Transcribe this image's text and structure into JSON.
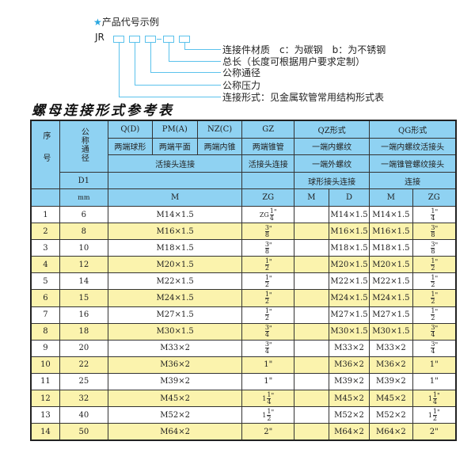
{
  "legend": {
    "title": "产品代号示例",
    "code_prefix": "JR",
    "labels": [
      "连接件材质　c：为碳钢　b：为不锈钢",
      "总长（长度可根据用户要求定制）",
      "公称通径",
      "公称压力",
      "连接形式：见金属软管常用结构形式表"
    ]
  },
  "table_title": "螺母连接形式参考表",
  "accent_colors": {
    "header": "#8fd2f2",
    "alt_row": "#fbf3ad",
    "legend_line": "#5bc2ec"
  },
  "header": {
    "seq": "序号",
    "dn": "公称通径",
    "qd": "Q(D)",
    "pm": "PM(A)",
    "nz": "NZ(C)",
    "gz": "GZ",
    "qz": "QZ形式",
    "qg": "QG形式",
    "qd_desc": "两端球形",
    "pm_desc": "两端平面",
    "nz_desc": "两端内锥",
    "gz_desc": "两端锥管",
    "qz_desc": "一端内螺纹",
    "qg_desc": "一端内螺纹活接头",
    "union_conn": "活接头连接",
    "gz_conn": "活接头连接",
    "qz_conn": "一端外螺纹",
    "qg_conn": "一端锥管螺纹接头",
    "d1": "D1",
    "qz_conn2": "球形接头连接",
    "qg_conn2": "连接",
    "mm": "mm",
    "m": "M",
    "zg": "ZG",
    "qz_m": "M",
    "qz_d": "D",
    "qg_m": "M",
    "qg_zg": "ZG"
  },
  "rows": [
    {
      "seq": "1",
      "dn": "6",
      "m": "M14×1.5",
      "zg": {
        "pre": "ZG",
        "num": "1",
        "den": "4",
        "suf": "\""
      },
      "qz_m": "",
      "qz_d": "M14×1.5",
      "qg_m": "M14×1.5",
      "qg_zg": {
        "pre": "",
        "num": "1",
        "den": "4",
        "suf": "\""
      }
    },
    {
      "seq": "2",
      "dn": "8",
      "m": "M16×1.5",
      "zg": {
        "pre": "",
        "num": "3",
        "den": "8",
        "suf": "\""
      },
      "qz_m": "",
      "qz_d": "M16×1.5",
      "qg_m": "M16×1.5",
      "qg_zg": {
        "pre": "",
        "num": "3",
        "den": "8",
        "suf": "\""
      }
    },
    {
      "seq": "3",
      "dn": "10",
      "m": "M18×1.5",
      "zg": {
        "pre": "",
        "num": "3",
        "den": "8",
        "suf": "\""
      },
      "qz_m": "",
      "qz_d": "M18×1.5",
      "qg_m": "M18×1.5",
      "qg_zg": {
        "pre": "",
        "num": "3",
        "den": "8",
        "suf": "\""
      }
    },
    {
      "seq": "4",
      "dn": "12",
      "m": "M20×1.5",
      "zg": {
        "pre": "",
        "num": "1",
        "den": "2",
        "suf": "\""
      },
      "qz_m": "",
      "qz_d": "M20×1.5",
      "qg_m": "M20×1.5",
      "qg_zg": {
        "pre": "",
        "num": "1",
        "den": "2",
        "suf": "\""
      }
    },
    {
      "seq": "5",
      "dn": "14",
      "m": "M22×1.5",
      "zg": {
        "pre": "",
        "num": "1",
        "den": "2",
        "suf": "\""
      },
      "qz_m": "",
      "qz_d": "M22×1.5",
      "qg_m": "M22×1.5",
      "qg_zg": {
        "pre": "",
        "num": "1",
        "den": "2",
        "suf": "\""
      }
    },
    {
      "seq": "6",
      "dn": "15",
      "m": "M24×1.5",
      "zg": {
        "pre": "",
        "num": "1",
        "den": "2",
        "suf": "\""
      },
      "qz_m": "",
      "qz_d": "M24×1.5",
      "qg_m": "M24×1.5",
      "qg_zg": {
        "pre": "",
        "num": "1",
        "den": "2",
        "suf": "\""
      }
    },
    {
      "seq": "7",
      "dn": "16",
      "m": "M27×1.5",
      "zg": {
        "pre": "",
        "num": "1",
        "den": "2",
        "suf": "\""
      },
      "qz_m": "",
      "qz_d": "M27×1.5",
      "qg_m": "M27×1.5",
      "qg_zg": {
        "pre": "",
        "num": "1",
        "den": "2",
        "suf": "\""
      }
    },
    {
      "seq": "8",
      "dn": "18",
      "m": "M30×1.5",
      "zg": {
        "pre": "",
        "num": "3",
        "den": "4",
        "suf": "\""
      },
      "qz_m": "",
      "qz_d": "M30×1.5",
      "qg_m": "M30×1.5",
      "qg_zg": {
        "pre": "",
        "num": "3",
        "den": "4",
        "suf": "\""
      }
    },
    {
      "seq": "9",
      "dn": "20",
      "m": "M33×2",
      "zg": {
        "pre": "",
        "num": "3",
        "den": "4",
        "suf": "\""
      },
      "qz_m": "",
      "qz_d": "M33×2",
      "qg_m": "M33×2",
      "qg_zg": {
        "pre": "",
        "num": "3",
        "den": "4",
        "suf": "\""
      }
    },
    {
      "seq": "10",
      "dn": "22",
      "m": "M36×2",
      "zg": {
        "text": "1\""
      },
      "qz_m": "",
      "qz_d": "M36×2",
      "qg_m": "M36×2",
      "qg_zg": {
        "text": "1\""
      }
    },
    {
      "seq": "11",
      "dn": "25",
      "m": "M39×2",
      "zg": {
        "text": "1\""
      },
      "qz_m": "",
      "qz_d": "M39×2",
      "qg_m": "M39×2",
      "qg_zg": {
        "text": "1\""
      }
    },
    {
      "seq": "12",
      "dn": "32",
      "m": "M45×2",
      "zg": {
        "pre": "1",
        "num": "1",
        "den": "4",
        "suf": "\""
      },
      "qz_m": "",
      "qz_d": "M45×2",
      "qg_m": "M45×2",
      "qg_zg": {
        "pre": "1",
        "num": "1",
        "den": "4",
        "suf": "\""
      }
    },
    {
      "seq": "13",
      "dn": "40",
      "m": "M52×2",
      "zg": {
        "pre": "1",
        "num": "1",
        "den": "2",
        "suf": "\""
      },
      "qz_m": "",
      "qz_d": "M52×2",
      "qg_m": "M52×2",
      "qg_zg": {
        "pre": "1",
        "num": "1",
        "den": "2",
        "suf": "\""
      }
    },
    {
      "seq": "14",
      "dn": "50",
      "m": "M64×2",
      "zg": {
        "text": "2\""
      },
      "qz_m": "",
      "qz_d": "M64×2",
      "qg_m": "M64×2",
      "qg_zg": {
        "text": "2\""
      }
    }
  ]
}
